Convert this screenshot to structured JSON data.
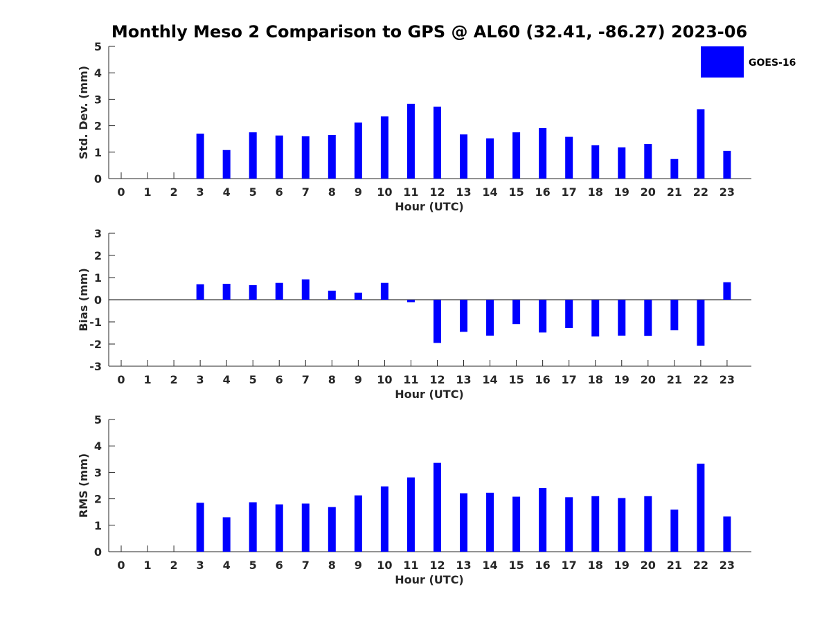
{
  "title": "Monthly Meso 2 Comparison to GPS @ AL60 (32.41, -86.27) 2023-06",
  "legend": {
    "label": "GOES-16",
    "color": "#0000ff",
    "placement": "top-right"
  },
  "chart_data": [
    {
      "type": "bar",
      "ylabel": "Std. Dev. (mm)",
      "xlabel": "Hour (UTC)",
      "ylim": [
        0,
        5
      ],
      "yticks": [
        0,
        1,
        2,
        3,
        4,
        5
      ],
      "categories": [
        "0",
        "1",
        "2",
        "3",
        "4",
        "5",
        "6",
        "7",
        "8",
        "9",
        "10",
        "11",
        "12",
        "13",
        "14",
        "15",
        "16",
        "17",
        "18",
        "19",
        "20",
        "21",
        "22",
        "23"
      ],
      "series": [
        {
          "name": "GOES-16",
          "color": "#0000ff",
          "values": [
            null,
            null,
            null,
            1.7,
            1.08,
            1.75,
            1.63,
            1.6,
            1.65,
            2.12,
            2.35,
            2.83,
            2.72,
            1.67,
            1.52,
            1.75,
            1.91,
            1.58,
            1.26,
            1.18,
            1.31,
            0.74,
            2.62,
            1.05
          ]
        }
      ]
    },
    {
      "type": "bar",
      "ylabel": "Bias (mm)",
      "xlabel": "Hour (UTC)",
      "ylim": [
        -3,
        3
      ],
      "yticks": [
        -3,
        -2,
        -1,
        0,
        1,
        2,
        3
      ],
      "categories": [
        "0",
        "1",
        "2",
        "3",
        "4",
        "5",
        "6",
        "7",
        "8",
        "9",
        "10",
        "11",
        "12",
        "13",
        "14",
        "15",
        "16",
        "17",
        "18",
        "19",
        "20",
        "21",
        "22",
        "23"
      ],
      "series": [
        {
          "name": "GOES-16",
          "color": "#0000ff",
          "values": [
            null,
            null,
            null,
            0.7,
            0.72,
            0.66,
            0.76,
            0.92,
            0.41,
            0.32,
            0.76,
            -0.11,
            -1.95,
            -1.45,
            -1.62,
            -1.1,
            -1.48,
            -1.28,
            -1.66,
            -1.62,
            -1.63,
            -1.38,
            -2.08,
            0.79
          ]
        }
      ]
    },
    {
      "type": "bar",
      "ylabel": "RMS (mm)",
      "xlabel": "Hour (UTC)",
      "ylim": [
        0,
        5
      ],
      "yticks": [
        0,
        1,
        2,
        3,
        4,
        5
      ],
      "categories": [
        "0",
        "1",
        "2",
        "3",
        "4",
        "5",
        "6",
        "7",
        "8",
        "9",
        "10",
        "11",
        "12",
        "13",
        "14",
        "15",
        "16",
        "17",
        "18",
        "19",
        "20",
        "21",
        "22",
        "23"
      ],
      "series": [
        {
          "name": "GOES-16",
          "color": "#0000ff",
          "values": [
            null,
            null,
            null,
            1.85,
            1.3,
            1.87,
            1.79,
            1.82,
            1.69,
            2.13,
            2.47,
            2.81,
            3.36,
            2.21,
            2.23,
            2.08,
            2.41,
            2.06,
            2.1,
            2.03,
            2.1,
            1.59,
            3.33,
            1.33
          ]
        }
      ]
    }
  ]
}
